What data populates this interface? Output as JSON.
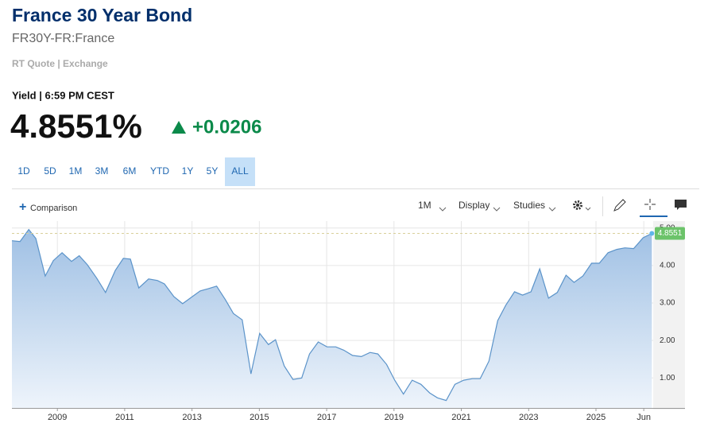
{
  "header": {
    "title": "France 30 Year Bond",
    "symbol": "FR30Y-FR:France",
    "quote_source": "RT Quote | Exchange",
    "yield_label": "Yield | 6:59 PM CEST",
    "price": "4.8551%",
    "change": "+0.0206"
  },
  "range_buttons": [
    "1D",
    "5D",
    "1M",
    "3M",
    "6M",
    "YTD",
    "1Y",
    "5Y",
    "ALL"
  ],
  "active_range": "ALL",
  "toolbar": {
    "comparison": "Comparison",
    "interval": "1M",
    "display": "Display",
    "studies": "Studies"
  },
  "chart_data": {
    "type": "area",
    "color": "#5b93c9",
    "x": [
      2007.65,
      2007.89,
      2008.15,
      2008.36,
      2008.64,
      2008.88,
      2009.14,
      2009.42,
      2009.65,
      2009.89,
      2010.17,
      2010.43,
      2010.72,
      2010.96,
      2011.17,
      2011.42,
      2011.71,
      2011.97,
      2012.18,
      2012.46,
      2012.72,
      2012.98,
      2013.24,
      2013.48,
      2013.73,
      2013.99,
      2014.23,
      2014.49,
      2014.75,
      2015.01,
      2015.27,
      2015.48,
      2015.74,
      2016.0,
      2016.26,
      2016.49,
      2016.75,
      2017.01,
      2017.27,
      2017.51,
      2017.77,
      2018.03,
      2018.29,
      2018.52,
      2018.78,
      2019.02,
      2019.28,
      2019.54,
      2019.8,
      2020.06,
      2020.29,
      2020.55,
      2020.81,
      2021.07,
      2021.33,
      2021.56,
      2021.82,
      2022.08,
      2022.32,
      2022.58,
      2022.82,
      2023.07,
      2023.33,
      2023.59,
      2023.85,
      2024.11,
      2024.35,
      2024.61,
      2024.87,
      2025.1,
      2025.36,
      2025.62,
      2025.86,
      2026.12,
      2026.4,
      2026.66
    ],
    "series": [
      {
        "values": [
          4.66,
          4.64,
          4.96,
          4.72,
          3.72,
          4.13,
          4.34,
          4.11,
          4.26,
          4.02,
          3.66,
          3.28,
          3.87,
          4.19,
          4.17,
          3.4,
          3.64,
          3.6,
          3.51,
          3.17,
          2.98,
          3.15,
          3.32,
          3.38,
          3.45,
          3.09,
          2.72,
          2.55,
          1.11,
          2.19,
          1.89,
          2.02,
          1.32,
          0.96,
          1.0,
          1.64,
          1.96,
          1.83,
          1.83,
          1.74,
          1.6,
          1.57,
          1.68,
          1.64,
          1.36,
          0.94,
          0.57,
          0.94,
          0.83,
          0.6,
          0.47,
          0.4,
          0.83,
          0.94,
          0.98,
          0.98,
          1.45,
          2.53,
          2.94,
          3.3,
          3.21,
          3.3,
          3.91,
          3.13,
          3.28,
          3.74,
          3.55,
          3.72,
          4.06,
          4.06,
          4.34,
          4.43,
          4.47,
          4.45,
          4.74,
          4.8551
        ]
      }
    ],
    "xlim": [
      2007.65,
      2026.7
    ],
    "xticks": [
      2009,
      2011,
      2013,
      2015,
      2017,
      2019,
      2021,
      2023,
      2025,
      {
        "value": 2026.42,
        "label": "Jun"
      }
    ],
    "ylim": [
      0.2,
      5.1
    ],
    "yticks": [
      {
        "value": 1,
        "label": "1.00"
      },
      {
        "value": 2,
        "label": "2.00"
      },
      {
        "value": 3,
        "label": "3.00"
      },
      {
        "value": 4,
        "label": "4.00"
      },
      {
        "value": 5,
        "label": "5.00"
      }
    ],
    "grid": true
  }
}
